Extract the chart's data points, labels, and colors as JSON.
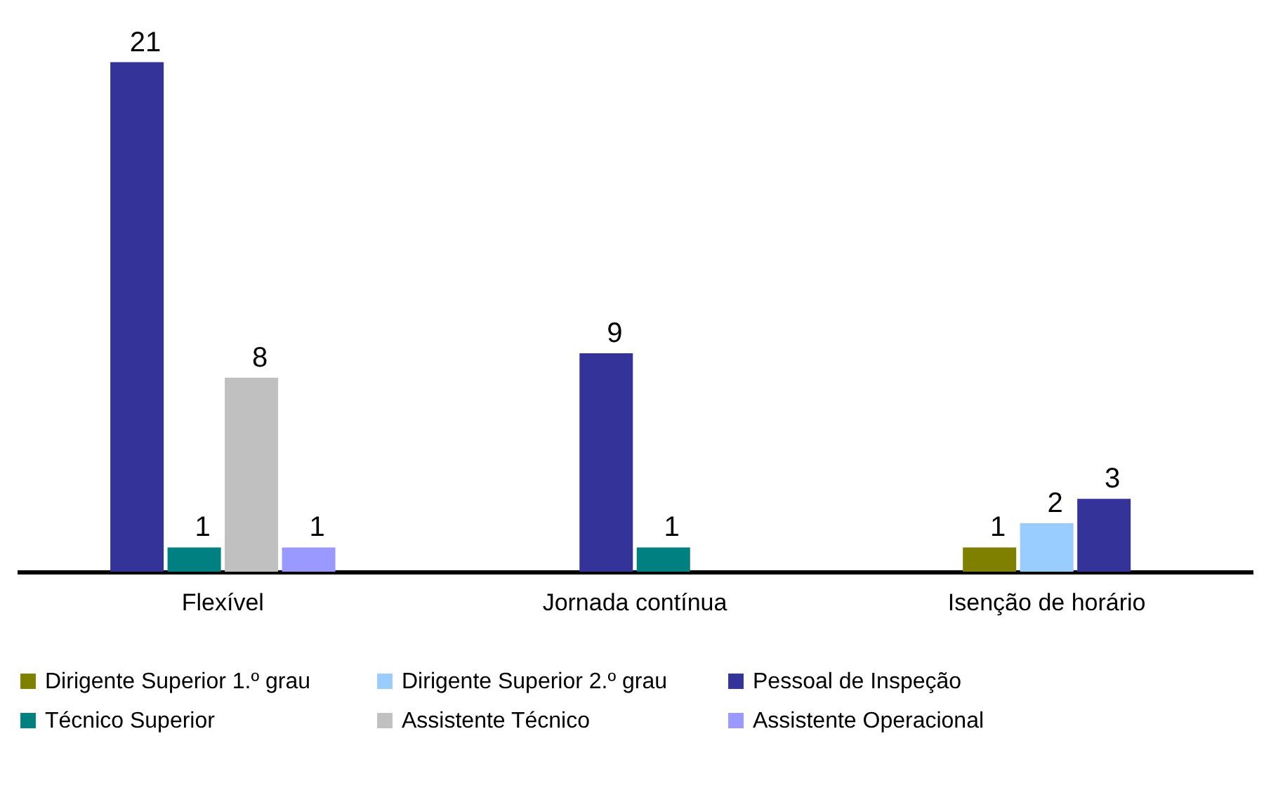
{
  "chart_data": {
    "type": "bar",
    "categories": [
      "Flexível",
      "Jornada contínua",
      "Isenção de horário"
    ],
    "series": [
      {
        "name": "Dirigente Superior  1.º grau",
        "color": "#808000",
        "values": [
          null,
          null,
          1
        ]
      },
      {
        "name": "Dirigente Superior 2.º grau",
        "color": "#99ccff",
        "values": [
          null,
          null,
          2
        ]
      },
      {
        "name": "Pessoal de Inspeção",
        "color": "#333399",
        "values": [
          21,
          9,
          3
        ]
      },
      {
        "name": "Técnico Superior",
        "color": "#008080",
        "values": [
          1,
          1,
          null
        ]
      },
      {
        "name": "Assistente Técnico",
        "color": "#c0c0c0",
        "values": [
          8,
          null,
          null
        ]
      },
      {
        "name": "Assistente Operacional",
        "color": "#9999ff",
        "values": [
          1,
          null,
          null
        ]
      }
    ],
    "data_labels": true,
    "legend": "bottom",
    "grid": false
  }
}
